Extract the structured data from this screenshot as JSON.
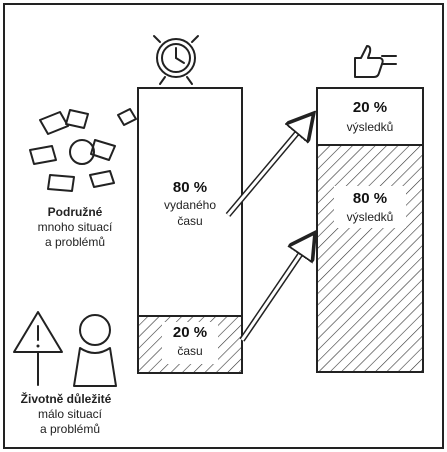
{
  "left_bar": {
    "top": {
      "value": "80 %",
      "lines": [
        "vydaného",
        "času"
      ]
    },
    "bottom": {
      "value": "20 %",
      "lines": [
        "času"
      ]
    }
  },
  "right_bar": {
    "top": {
      "value": "20 %",
      "lines": [
        "výsledků"
      ]
    },
    "bottom": {
      "value": "80 %",
      "lines": [
        "výsledků"
      ]
    }
  },
  "labels": [
    {
      "title": "Podružné",
      "lines": [
        "mnoho situací",
        "a problémů"
      ]
    },
    {
      "title": "Životně důležité",
      "lines": [
        "málo situací",
        "a problémů"
      ]
    }
  ]
}
